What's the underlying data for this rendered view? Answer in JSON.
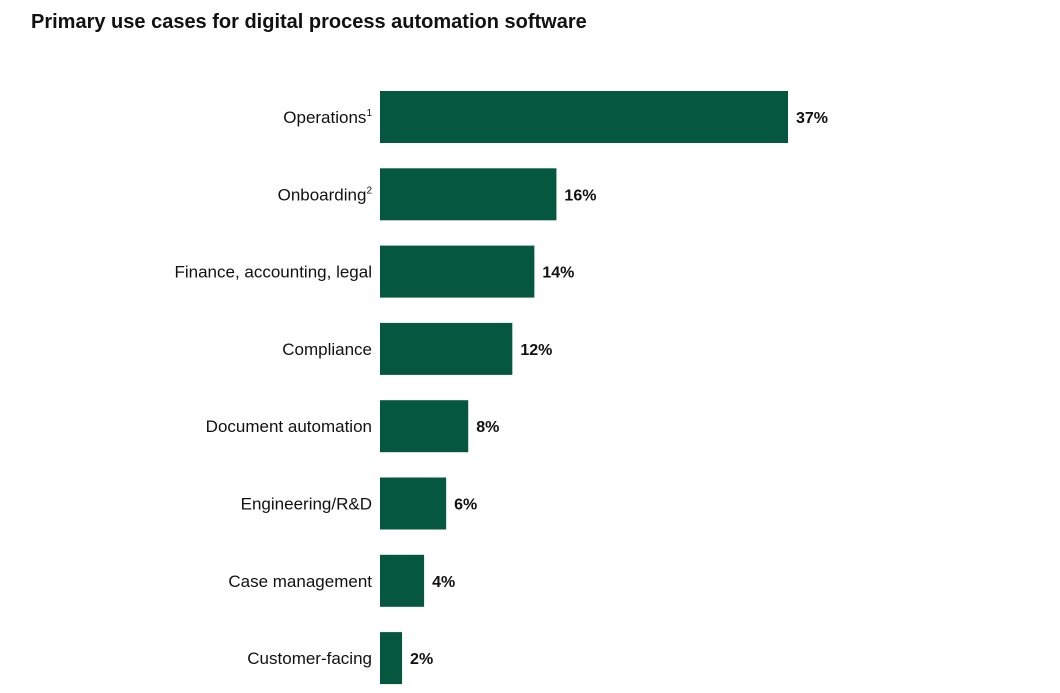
{
  "chart_data": {
    "type": "bar",
    "orientation": "horizontal",
    "title": "Primary use cases for digital process automation software",
    "categories": [
      {
        "label": "Operations",
        "footnote": "1"
      },
      {
        "label": "Onboarding",
        "footnote": "2"
      },
      {
        "label": "Finance, accounting, legal",
        "footnote": ""
      },
      {
        "label": "Compliance",
        "footnote": ""
      },
      {
        "label": "Document automation",
        "footnote": ""
      },
      {
        "label": "Engineering/R&D",
        "footnote": ""
      },
      {
        "label": "Case management",
        "footnote": ""
      },
      {
        "label": "Customer-facing",
        "footnote": ""
      }
    ],
    "values": [
      37,
      16,
      14,
      12,
      8,
      6,
      4,
      2
    ],
    "value_labels": [
      "37%",
      "16%",
      "14%",
      "12%",
      "8%",
      "6%",
      "4%",
      "2%"
    ],
    "xlabel": "",
    "ylabel": "",
    "xlim": [
      0,
      37
    ],
    "grid": false,
    "legend": "none",
    "bar_color": "#06573f"
  }
}
